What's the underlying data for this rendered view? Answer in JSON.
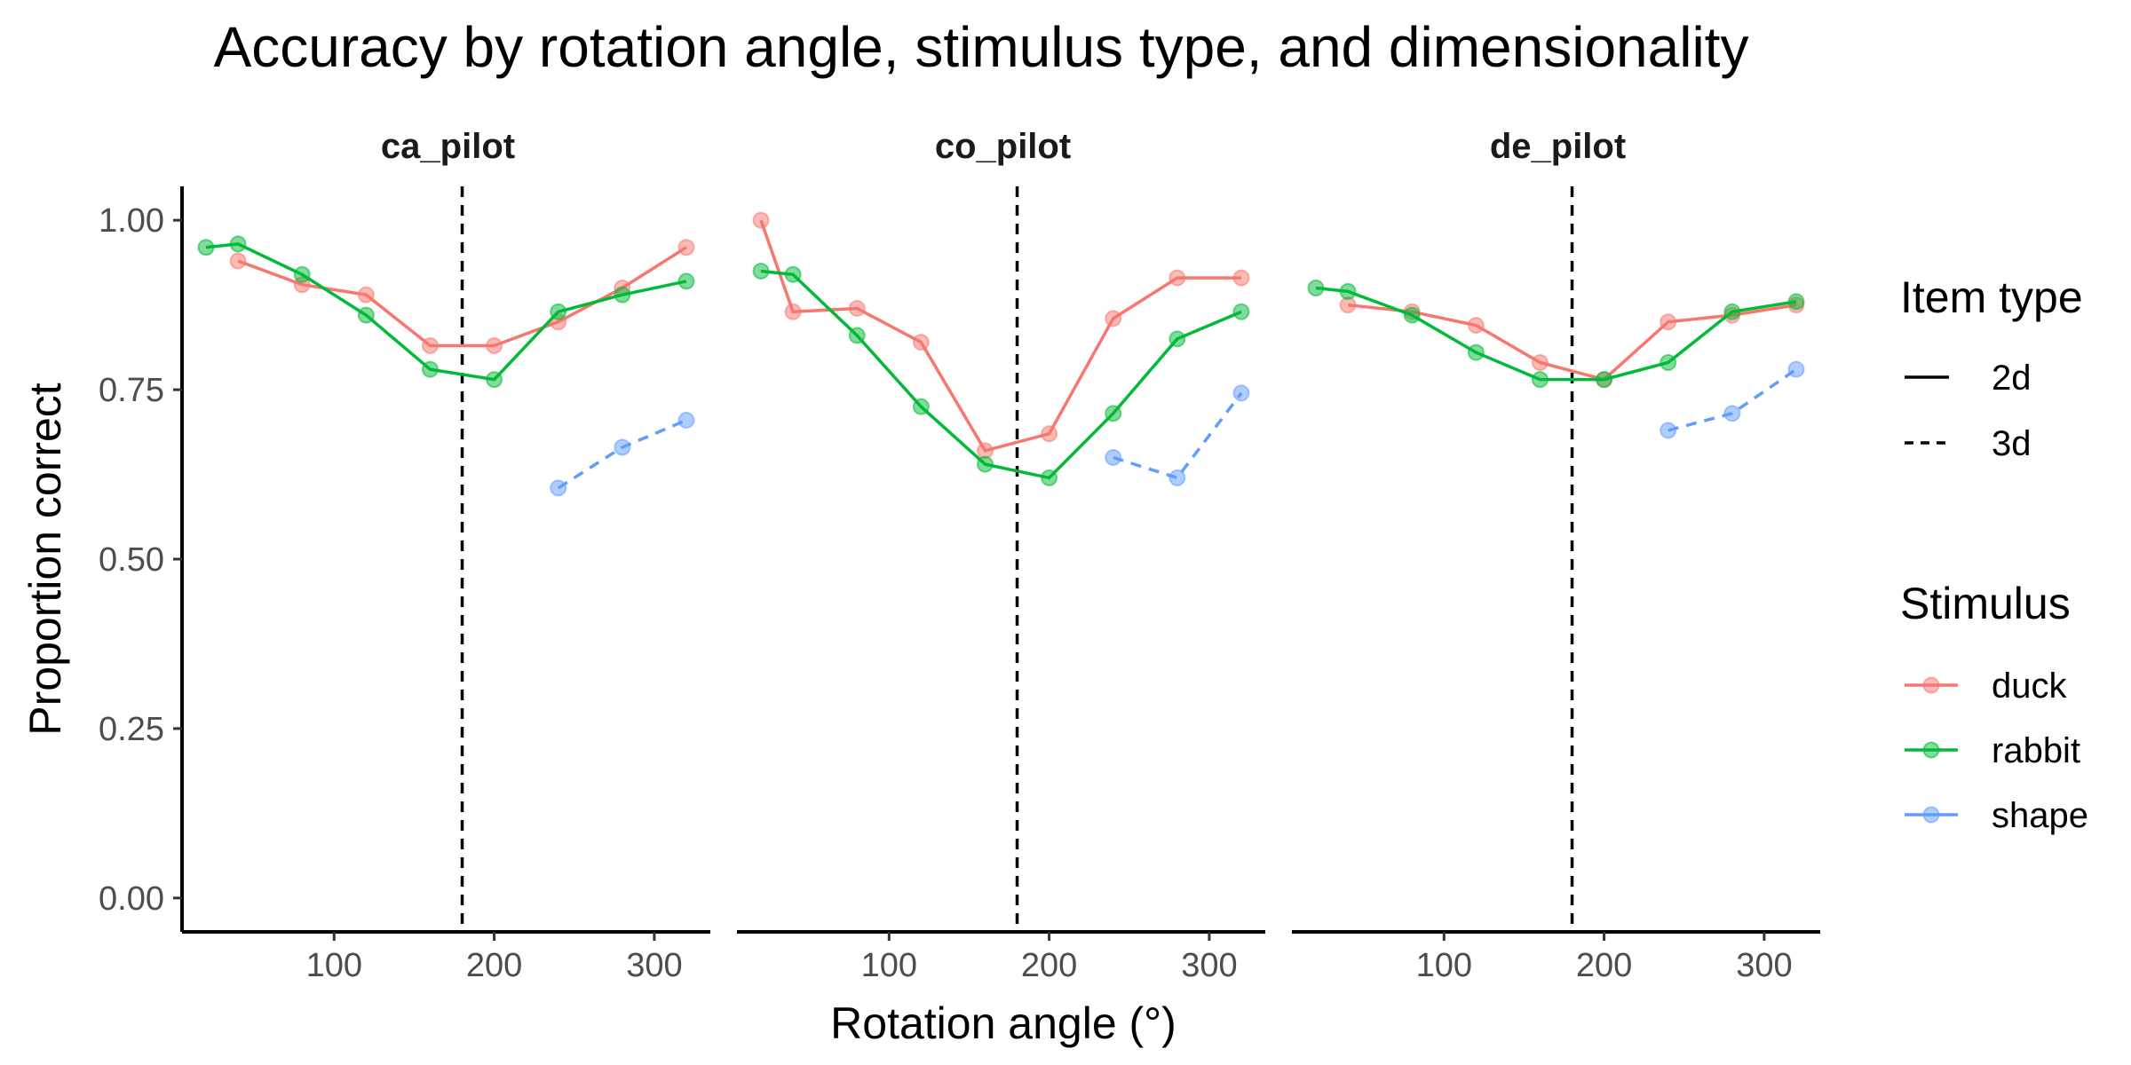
{
  "chart_data": {
    "type": "line",
    "title": "Accuracy by rotation angle, stimulus type, and dimensionality",
    "xlabel": "Rotation angle (°)",
    "ylabel": "Proportion correct",
    "xlim": [
      5,
      335
    ],
    "ylim": [
      -0.05,
      1.05
    ],
    "x_ticks": [
      100,
      200,
      300
    ],
    "x_tick_labels": [
      "100",
      "200",
      "300"
    ],
    "y_ticks": [
      0,
      0.25,
      0.5,
      0.75,
      1.0
    ],
    "y_tick_labels": [
      "0.00",
      "0.25",
      "0.50",
      "0.75",
      "1.00"
    ],
    "reference_line_x": 180,
    "grid": false,
    "colors": {
      "duck": "#F8766D",
      "rabbit": "#00BA38",
      "shape": "#619CFF",
      "axis": "#000000",
      "vline": "#000000"
    },
    "legend": {
      "position": "right",
      "linetype": {
        "title": "Item type",
        "items": [
          {
            "label": "2d",
            "dash": "solid"
          },
          {
            "label": "3d",
            "dash": "dashed"
          }
        ]
      },
      "color": {
        "title": "Stimulus",
        "items": [
          {
            "label": "duck",
            "key": "duck"
          },
          {
            "label": "rabbit",
            "key": "rabbit"
          },
          {
            "label": "shape",
            "key": "shape"
          }
        ]
      }
    },
    "panels": [
      {
        "name": "ca_pilot",
        "series": [
          {
            "stimulus": "duck",
            "item_type": "2d",
            "x": [
              40,
              80,
              120,
              160,
              200,
              240,
              280,
              320
            ],
            "y": [
              0.94,
              0.905,
              0.89,
              0.815,
              0.815,
              0.85,
              0.9,
              0.96
            ]
          },
          {
            "stimulus": "rabbit",
            "item_type": "2d",
            "x": [
              20,
              40,
              80,
              120,
              160,
              200,
              240,
              280,
              320
            ],
            "y": [
              0.96,
              0.965,
              0.92,
              0.86,
              0.78,
              0.765,
              0.865,
              0.89,
              0.91
            ]
          },
          {
            "stimulus": "shape",
            "item_type": "3d",
            "x": [
              240,
              280,
              320
            ],
            "y": [
              0.605,
              0.665,
              0.705
            ]
          }
        ]
      },
      {
        "name": "co_pilot",
        "series": [
          {
            "stimulus": "duck",
            "item_type": "2d",
            "x": [
              20,
              40,
              80,
              120,
              160,
              200,
              240,
              280,
              320
            ],
            "y": [
              1.0,
              0.865,
              0.87,
              0.82,
              0.66,
              0.685,
              0.855,
              0.915,
              0.915
            ]
          },
          {
            "stimulus": "rabbit",
            "item_type": "2d",
            "x": [
              20,
              40,
              80,
              120,
              160,
              200,
              240,
              280,
              320
            ],
            "y": [
              0.925,
              0.92,
              0.83,
              0.725,
              0.64,
              0.62,
              0.715,
              0.825,
              0.865
            ]
          },
          {
            "stimulus": "shape",
            "item_type": "3d",
            "x": [
              240,
              280,
              320
            ],
            "y": [
              0.65,
              0.62,
              0.745
            ]
          }
        ]
      },
      {
        "name": "de_pilot",
        "series": [
          {
            "stimulus": "duck",
            "item_type": "2d",
            "x": [
              40,
              80,
              120,
              160,
              200,
              240,
              280,
              320
            ],
            "y": [
              0.875,
              0.865,
              0.845,
              0.79,
              0.765,
              0.85,
              0.86,
              0.875
            ]
          },
          {
            "stimulus": "rabbit",
            "item_type": "2d",
            "x": [
              20,
              40,
              80,
              120,
              160,
              200,
              240,
              280,
              320
            ],
            "y": [
              0.9,
              0.895,
              0.86,
              0.805,
              0.765,
              0.765,
              0.79,
              0.865,
              0.88
            ]
          },
          {
            "stimulus": "shape",
            "item_type": "3d",
            "x": [
              240,
              280,
              320
            ],
            "y": [
              0.69,
              0.715,
              0.78
            ]
          }
        ]
      }
    ]
  }
}
